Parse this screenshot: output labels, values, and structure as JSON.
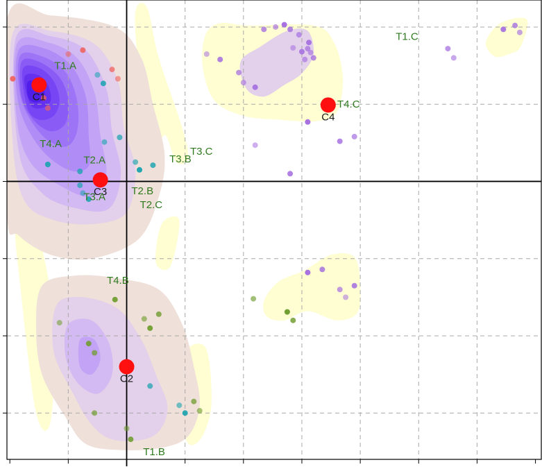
{
  "chart_data": {
    "type": "scatter",
    "title": "",
    "xlabel": "",
    "ylabel": "",
    "xlim": [
      -2.05,
      7.1
    ],
    "ylim": [
      -3.6,
      2.35
    ],
    "grid": true,
    "colors": {
      "teal": "#1aa3b0",
      "green": "#6c9b2a",
      "purple": "#a46de0",
      "salmon": "#f0605a",
      "centroid": "#ff1010",
      "dark_label": "#1a1a1a",
      "green_label": "#2f7a1f"
    },
    "density": {
      "levels": [
        "#fefed2",
        "#efe0d9",
        "#e3d0ea",
        "#d3baf2",
        "#c2a3f5",
        "#af8cf6",
        "#9d74f6",
        "#8a5cf5",
        "#7745f3",
        "#6531ef",
        "#501ee9"
      ],
      "blobs": [
        {
          "region": "upper-left",
          "levels": 11
        },
        {
          "region": "lower-left",
          "levels": 4
        },
        {
          "region": "upper-middle",
          "levels": 2
        },
        {
          "region": "right-middle",
          "levels": 1
        },
        {
          "region": "far-right",
          "levels": 1
        }
      ]
    },
    "centroids": [
      {
        "label": "C1",
        "x": -1.5,
        "y": 1.25
      },
      {
        "label": "C3",
        "x": -0.45,
        "y": 0.02
      },
      {
        "label": "C4",
        "x": 3.45,
        "y": 0.99
      },
      {
        "label": "C2",
        "x": 0.0,
        "y": -2.4
      }
    ],
    "annotations": [
      {
        "text": "T1.A",
        "x": -1.05,
        "y": 1.5
      },
      {
        "text": "T4.A",
        "x": -1.3,
        "y": 0.49
      },
      {
        "text": "T2.A",
        "x": -0.55,
        "y": 0.28
      },
      {
        "text": "T3.A",
        "x": -0.55,
        "y": -0.2
      },
      {
        "text": "T2.B",
        "x": 0.27,
        "y": -0.12
      },
      {
        "text": "T2.C",
        "x": 0.42,
        "y": -0.3
      },
      {
        "text": "T3.B",
        "x": 0.92,
        "y": 0.29
      },
      {
        "text": "T3.C",
        "x": 1.28,
        "y": 0.39
      },
      {
        "text": "T4.B",
        "x": -0.15,
        "y": -1.28
      },
      {
        "text": "T1.B",
        "x": 0.47,
        "y": -3.5
      },
      {
        "text": "T1.C",
        "x": 4.8,
        "y": 1.88
      },
      {
        "text": "T4.C",
        "x": 3.8,
        "y": 1.0
      }
    ],
    "series": [
      {
        "color": "salmon",
        "points": [
          [
            -1.0,
            1.65
          ],
          [
            -0.75,
            1.7
          ],
          [
            -0.25,
            1.45
          ],
          [
            -0.15,
            1.33
          ],
          [
            -1.95,
            1.33
          ],
          [
            -1.42,
            1.08
          ],
          [
            -1.35,
            0.95
          ],
          [
            -1.55,
            1.2
          ]
        ]
      },
      {
        "color": "teal",
        "points": [
          [
            -0.5,
            1.38
          ],
          [
            -0.4,
            1.27
          ],
          [
            -0.12,
            0.57
          ],
          [
            -0.38,
            0.51
          ],
          [
            -1.35,
            0.22
          ],
          [
            -0.8,
            0.13
          ],
          [
            0.15,
            0.25
          ],
          [
            0.22,
            0.15
          ],
          [
            0.45,
            0.21
          ],
          [
            -0.8,
            -0.05
          ],
          [
            -0.75,
            -0.15
          ],
          [
            -0.65,
            -0.23
          ],
          [
            0.4,
            -2.65
          ],
          [
            0.9,
            -2.9
          ],
          [
            1.0,
            -3.0
          ]
        ]
      },
      {
        "color": "green",
        "points": [
          [
            -1.15,
            -1.83
          ],
          [
            -0.65,
            -2.1
          ],
          [
            -0.55,
            -2.22
          ],
          [
            0.3,
            -1.78
          ],
          [
            0.4,
            -1.9
          ],
          [
            0.55,
            -1.72
          ],
          [
            2.17,
            -1.52
          ],
          [
            2.75,
            -1.69
          ],
          [
            2.85,
            -1.8
          ],
          [
            -0.55,
            -3.0
          ],
          [
            0.0,
            -3.2
          ],
          [
            0.07,
            -3.34
          ],
          [
            1.15,
            -2.85
          ],
          [
            1.25,
            -2.97
          ],
          [
            -0.2,
            -1.53
          ]
        ]
      },
      {
        "color": "purple",
        "points": [
          [
            1.37,
            1.65
          ],
          [
            1.6,
            1.58
          ],
          [
            1.92,
            1.41
          ],
          [
            2.0,
            1.28
          ],
          [
            2.2,
            1.22
          ],
          [
            2.35,
            1.97
          ],
          [
            2.55,
            2.0
          ],
          [
            2.7,
            2.03
          ],
          [
            2.8,
            1.97
          ],
          [
            2.95,
            1.9
          ],
          [
            2.85,
            1.73
          ],
          [
            3.0,
            1.68
          ],
          [
            3.1,
            1.72
          ],
          [
            3.15,
            1.67
          ],
          [
            3.12,
            1.8
          ],
          [
            3.2,
            1.6
          ],
          [
            3.05,
            1.58
          ],
          [
            3.1,
            0.77
          ],
          [
            3.65,
            0.52
          ],
          [
            3.9,
            0.58
          ],
          [
            2.2,
            0.47
          ],
          [
            2.8,
            0.1
          ],
          [
            5.5,
            1.72
          ],
          [
            5.6,
            1.6
          ],
          [
            6.45,
            1.97
          ],
          [
            6.65,
            2.02
          ],
          [
            6.73,
            1.93
          ],
          [
            3.1,
            -1.18
          ],
          [
            3.35,
            -1.14
          ],
          [
            3.65,
            -1.4
          ],
          [
            3.75,
            -1.5
          ],
          [
            3.9,
            -1.35
          ]
        ]
      }
    ]
  }
}
